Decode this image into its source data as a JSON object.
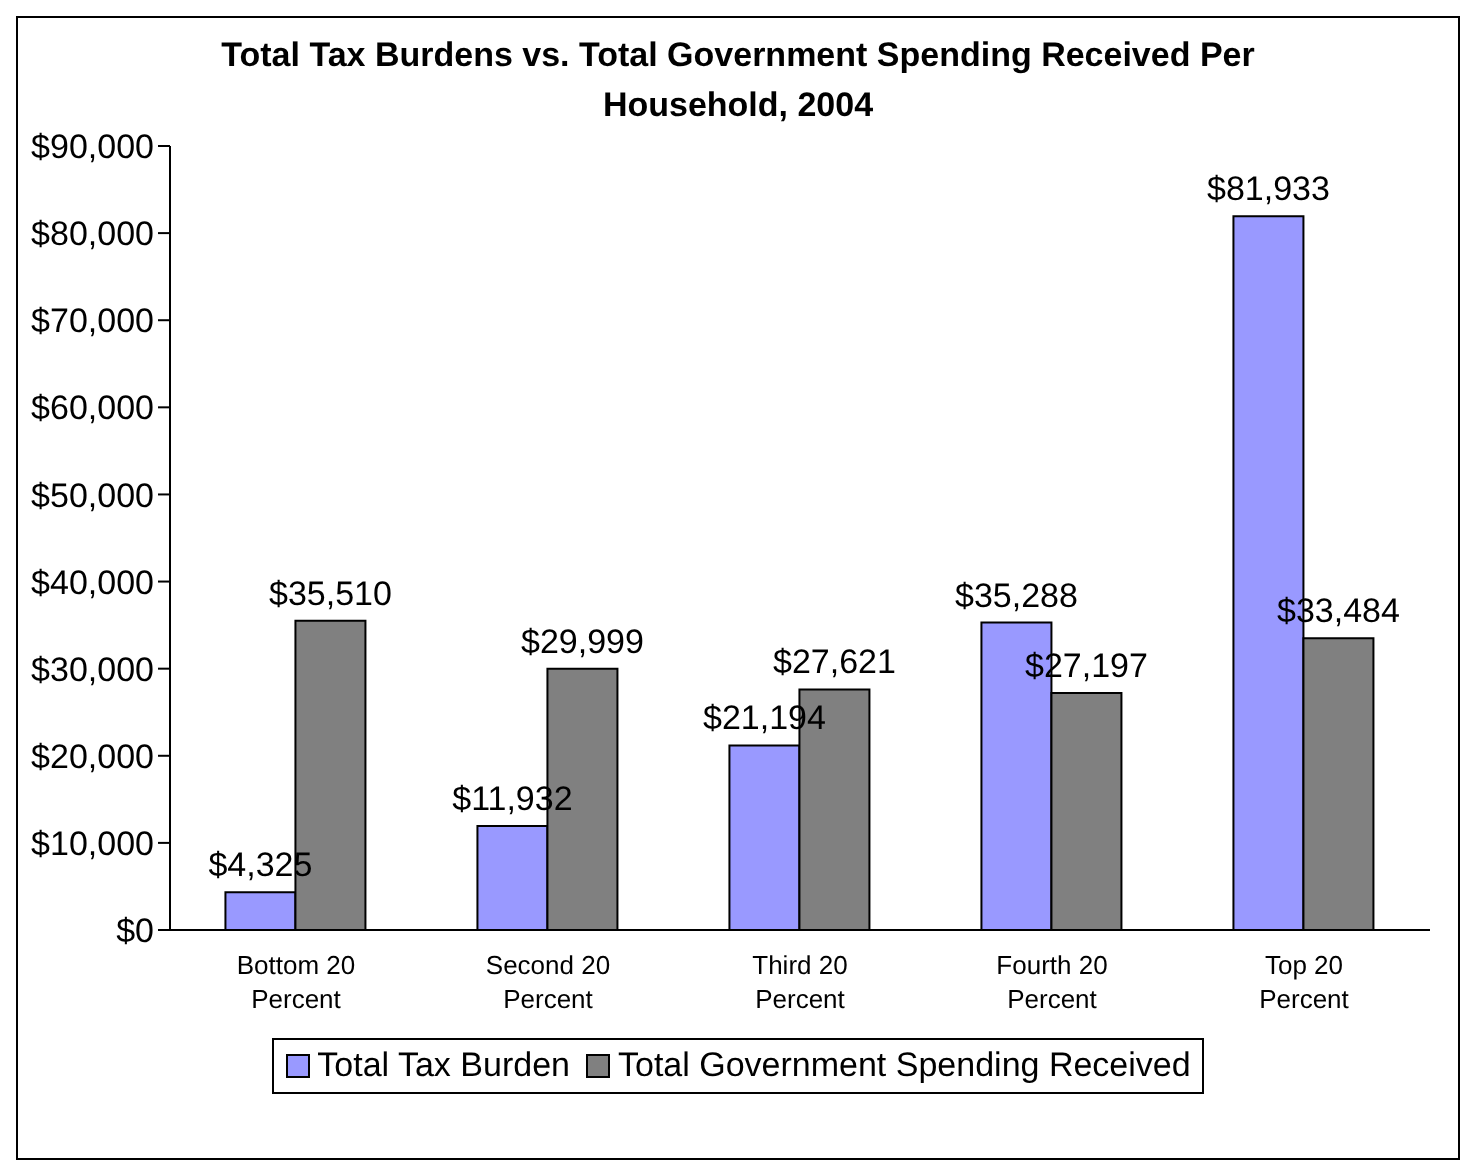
{
  "chart_data": {
    "type": "bar",
    "title": "Total Tax Burdens vs. Total Government Spending Received Per Household, 2004",
    "categories": [
      "Bottom 20 Percent",
      "Second 20 Percent",
      "Third 20 Percent",
      "Fourth 20 Percent",
      "Top 20 Percent"
    ],
    "series": [
      {
        "name": "Total Tax Burden",
        "color": "#9999ff",
        "values": [
          4325,
          11932,
          21194,
          35288,
          81933
        ],
        "value_labels": [
          "$4,325",
          "$11,932",
          "$21,194",
          "$35,288",
          "$81,933"
        ]
      },
      {
        "name": "Total Government Spending Received",
        "color": "#808080",
        "values": [
          35510,
          29999,
          27621,
          27197,
          33484
        ],
        "value_labels": [
          "$35,510",
          "$29,999",
          "$27,621",
          "$27,197",
          "$33,484"
        ]
      }
    ],
    "ylim": [
      0,
      90000
    ],
    "yticks": [
      {
        "value": 0,
        "label": "$0"
      },
      {
        "value": 10000,
        "label": "$10,000"
      },
      {
        "value": 20000,
        "label": "$20,000"
      },
      {
        "value": 30000,
        "label": "$30,000"
      },
      {
        "value": 40000,
        "label": "$40,000"
      },
      {
        "value": 50000,
        "label": "$50,000"
      },
      {
        "value": 60000,
        "label": "$60,000"
      },
      {
        "value": 70000,
        "label": "$70,000"
      },
      {
        "value": 80000,
        "label": "$80,000"
      },
      {
        "value": 90000,
        "label": "$90,000"
      }
    ],
    "grid": false,
    "legend": "bottom"
  }
}
